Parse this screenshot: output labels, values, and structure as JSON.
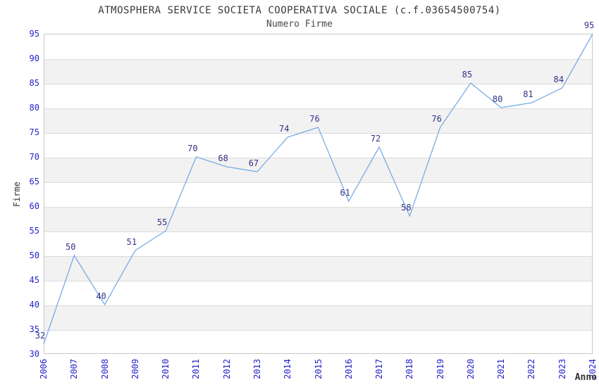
{
  "title": "ATMOSPHERA SERVICE SOCIETA COOPERATIVA SOCIALE (c.f.03654500754)",
  "subtitle": "Numero Firme",
  "chart_data": {
    "type": "line",
    "title": "ATMOSPHERA SERVICE SOCIETA COOPERATIVA SOCIALE (c.f.03654500754)",
    "subtitle": "Numero Firme",
    "xlabel": "Anno",
    "ylabel": "Firme",
    "x": [
      2006,
      2007,
      2008,
      2009,
      2010,
      2011,
      2012,
      2013,
      2014,
      2015,
      2016,
      2017,
      2018,
      2019,
      2020,
      2021,
      2022,
      2023,
      2024
    ],
    "series": [
      {
        "name": "Numero Firme",
        "values": [
          32,
          50,
          40,
          51,
          55,
          70,
          68,
          67,
          74,
          76,
          61,
          72,
          58,
          76,
          85,
          80,
          81,
          84,
          95
        ]
      }
    ],
    "ylim": [
      30,
      95
    ],
    "ytick_step": 5,
    "yticks": [
      30,
      35,
      40,
      45,
      50,
      55,
      60,
      65,
      70,
      75,
      80,
      85,
      90,
      95
    ],
    "grid": true,
    "legend": "none",
    "layout_hints": "alternating horizontal shaded bands every 5 units, x tick labels rotated 90°, point value labels above line",
    "colors": {
      "line": "#79ace5",
      "tick_label": "#2323cc",
      "point_label": "#323287",
      "band": "#f2f2f2",
      "gridline": "#dcdcdc",
      "plot_border": "#c9c9c9",
      "title_text": "#3a3a3a"
    }
  }
}
